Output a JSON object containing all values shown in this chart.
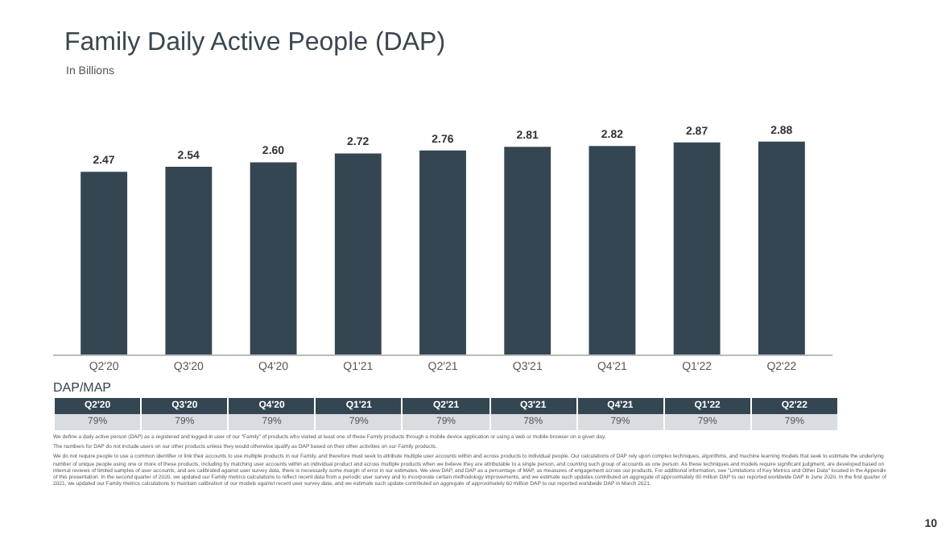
{
  "chart_data": [
    {
      "type": "bar",
      "title": "Family Daily Active People (DAP)",
      "subtitle": "In Billions",
      "categories": [
        "Q2'20",
        "Q3'20",
        "Q4'20",
        "Q1'21",
        "Q2'21",
        "Q3'21",
        "Q4'21",
        "Q1'22",
        "Q2'22"
      ],
      "values": [
        2.47,
        2.54,
        2.6,
        2.72,
        2.76,
        2.81,
        2.82,
        2.87,
        2.88
      ],
      "color": "#344652",
      "value_labels": [
        "2.47",
        "2.54",
        "2.60",
        "2.72",
        "2.76",
        "2.81",
        "2.82",
        "2.87",
        "2.88"
      ],
      "grid": false
    },
    {
      "type": "other",
      "title": "DAP/MAP",
      "categories": [
        "Q2'20",
        "Q3'20",
        "Q4'20",
        "Q1'21",
        "Q2'21",
        "Q3'21",
        "Q4'21",
        "Q1'22",
        "Q2'22"
      ],
      "value_labels": [
        "79%",
        "79%",
        "79%",
        "79%",
        "79%",
        "78%",
        "79%",
        "79%",
        "79%"
      ],
      "annotations": [
        "We define a daily active person (DAP) as a registered and logged-in user of our \"Family\" of products who visited at least one of these Family products through a mobile device application or using a web or mobile browser on a given day.",
        "The numbers for DAP do not include users on our other products unless they would otherwise qualify as DAP based on their other activities on our Family products.",
        "We do not require people to use a common identifier or link their accounts to use multiple products in our Family, and therefore must seek to attribute multiple user accounts within and across products to individual people. Our calculations of DAP rely upon complex techniques, algorithms, and machine learning models that seek to estimate the underlying number of unique people using one or more of these products, including by matching user accounts within an individual product and across multiple products when we believe they are attributable to a single person, and counting such group of accounts as one person. As these techniques and models require significant judgment, are developed based on internal reviews of limited samples of user accounts, and are calibrated against user survey data, there is necessarily some margin of error in our estimates. We view DAP, and DAP as a percentage of MAP, as measures of engagement across our products. For additional information, see \"Limitations of Key Metrics and Other Data\" located in the Appendix of this presentation. In the second quarter of 2020, we updated our Family metrics calculations to reflect recent data from a periodic user survey and to incorporate certain methodology improvements, and we estimate such updates contributed an aggregate of approximately 80 million DAP to our reported worldwide DAP in June 2020. In the first quarter of 2021, we updated our Family metrics calculations to maintain calibration of our models against recent user survey data, and we estimate such update contributed an aggregate of approximately 60 million DAP to our reported worldwide DAP in March 2021.",
        "10"
      ]
    }
  ]
}
